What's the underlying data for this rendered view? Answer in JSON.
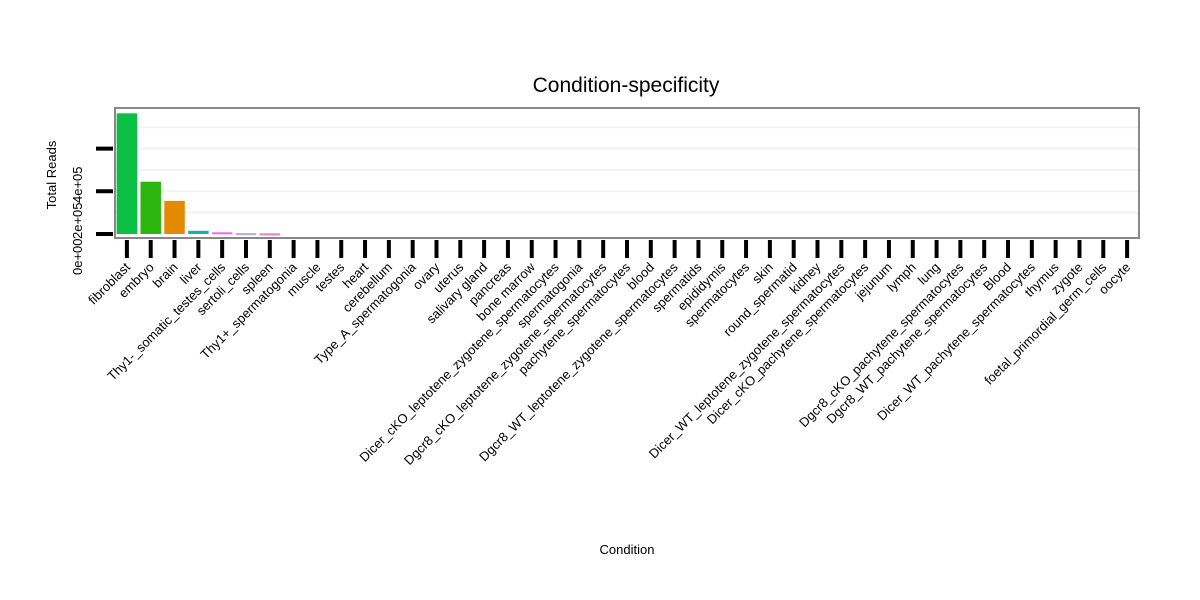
{
  "chart_data": {
    "type": "bar",
    "title": "Condition-specificity",
    "xlabel": "Condition",
    "ylabel": "Total Reads",
    "ylim": [
      0,
      590000
    ],
    "y_ticks": [
      0,
      200000,
      400000
    ],
    "y_tick_labels": [
      "0e+00",
      "2e+05",
      "4e+05"
    ],
    "grid": true,
    "legend": "none",
    "categories": [
      "fibroblast",
      "embryo",
      "brain",
      "liver",
      "Thy1-_somatic_testes_cells",
      "sertoli_cells",
      "spleen",
      "Thy1+_spermatogonia",
      "muscle",
      "testes",
      "heart",
      "cerebellum",
      "Type_A_spermatogonia",
      "ovary",
      "uterus",
      "salivary gland",
      "pancreas",
      "bone marrow",
      "Dicer_cKO_leptotene_zygotene_spermatocytes",
      "spermatogonia",
      "Dgcr8_cKO_leptotene_zygotene_spermatocytes",
      "pachytene_spermatocytes",
      "blood",
      "Dgcr8_WT_leptotene_zygotene_spermatocytes",
      "spermatids",
      "epididymis",
      "spermatocytes",
      "skin",
      "round_spermatid",
      "kidney",
      "Dicer_WT_leptotene_zygotene_spermatocytes",
      "Dicer_cKO_pachytene_spermatocytes",
      "jejunum",
      "lymph",
      "lung",
      "Dgcr8_cKO_pachytene_spermatocytes",
      "Dgcr8_WT_pachytene_spermatocytes",
      "Blood",
      "Dicer_WT_pachytene_spermatocytes",
      "thymus",
      "zygote",
      "foetal_primordial_germ_cells",
      "oocyte"
    ],
    "values": [
      565000,
      245000,
      155000,
      15000,
      8000,
      4000,
      3000,
      0,
      0,
      0,
      0,
      0,
      0,
      0,
      0,
      0,
      0,
      0,
      0,
      0,
      0,
      0,
      0,
      0,
      0,
      0,
      0,
      0,
      0,
      0,
      0,
      0,
      0,
      0,
      0,
      0,
      0,
      0,
      0,
      0,
      0,
      0,
      0
    ],
    "colors": [
      "#0bbf45",
      "#2db510",
      "#e28a00",
      "#14b3a6",
      "#f26bd6",
      "#b8a8d8",
      "#f07acb",
      "#cccccc",
      "#cccccc",
      "#cccccc",
      "#cccccc",
      "#cccccc",
      "#cccccc",
      "#cccccc",
      "#cccccc",
      "#cccccc",
      "#cccccc",
      "#cccccc",
      "#cccccc",
      "#cccccc",
      "#cccccc",
      "#cccccc",
      "#cccccc",
      "#cccccc",
      "#cccccc",
      "#cccccc",
      "#cccccc",
      "#cccccc",
      "#cccccc",
      "#cccccc",
      "#cccccc",
      "#cccccc",
      "#cccccc",
      "#cccccc",
      "#cccccc",
      "#cccccc",
      "#cccccc",
      "#cccccc",
      "#cccccc",
      "#cccccc",
      "#cccccc",
      "#cccccc",
      "#cccccc"
    ],
    "frame_color": "#888888",
    "grid_color": "#f2f2f2"
  }
}
